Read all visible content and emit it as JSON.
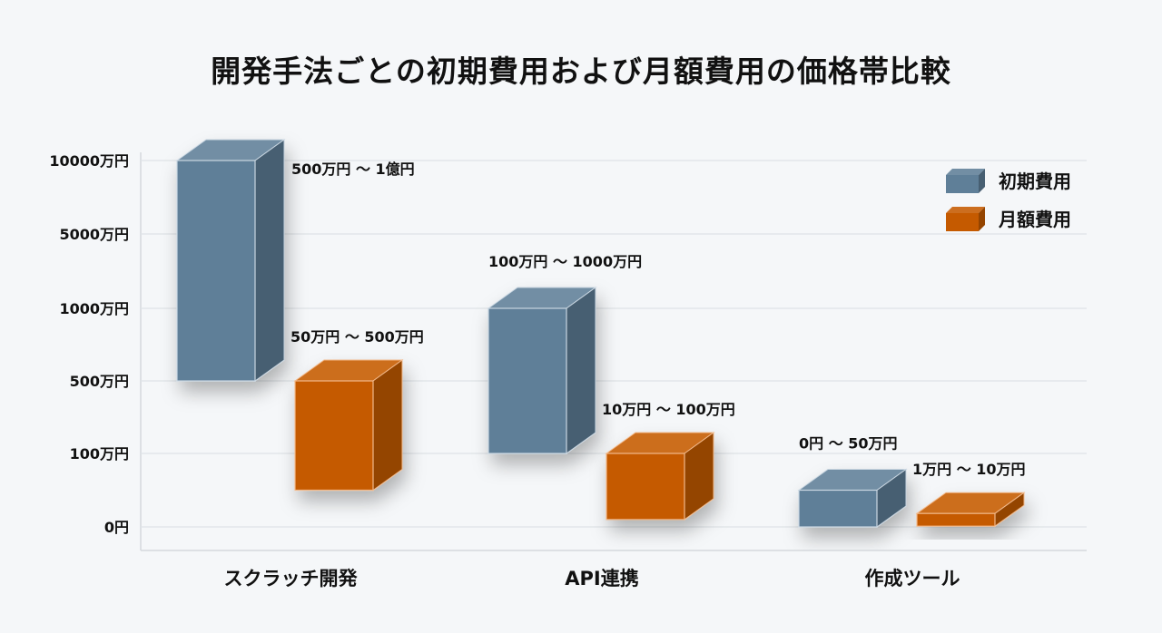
{
  "chart_data": {
    "type": "bar",
    "subtype": "3d-floating-range",
    "title": "開発手法ごとの初期費用および月額費用の価格帯比較",
    "xlabel": "",
    "ylabel": "",
    "categories": [
      "スクラッチ開発",
      "API連携",
      "作成ツール"
    ],
    "y_ticks": [
      {
        "value": 0,
        "label": "0円"
      },
      {
        "value": 100,
        "label": "100万円"
      },
      {
        "value": 500,
        "label": "500万円"
      },
      {
        "value": 1000,
        "label": "1000万円"
      },
      {
        "value": 5000,
        "label": "5000万円"
      },
      {
        "value": 10000,
        "label": "10000万円"
      }
    ],
    "y_unit": "万円",
    "y_scale": "non-linear (evenly spaced ticks)",
    "grid": true,
    "legend": "top-right",
    "series": [
      {
        "name": "初期費用",
        "color": "#5f7f98",
        "ranges": [
          [
            500,
            10000
          ],
          [
            100,
            1000
          ],
          [
            0,
            50
          ]
        ],
        "labels": [
          "500万円 ～ 1億円",
          "100万円 ～ 1000万円",
          "0円 ～ 50万円"
        ]
      },
      {
        "name": "月額費用",
        "color": "#c55a00",
        "ranges": [
          [
            50,
            500
          ],
          [
            10,
            100
          ],
          [
            1,
            10
          ]
        ],
        "labels": [
          "50万円 ～ 500万円",
          "10万円 ～ 100万円",
          "1万円 ～ 10万円"
        ]
      }
    ]
  }
}
